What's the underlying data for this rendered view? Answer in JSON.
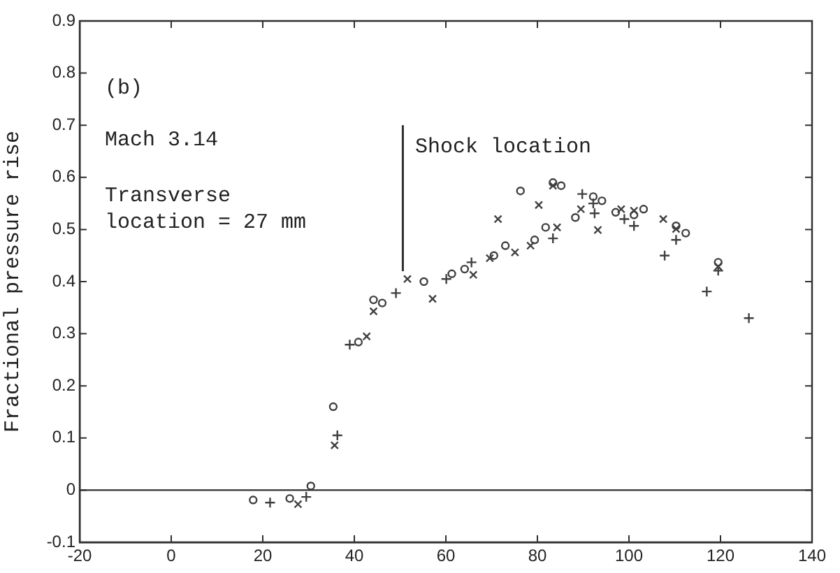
{
  "chart_data": {
    "type": "scatter",
    "ylabel": "Fractional pressure rise",
    "xlim": [
      -20,
      140
    ],
    "xticks": [
      -20,
      0,
      20,
      40,
      60,
      80,
      100,
      120,
      140
    ],
    "ylim": [
      -0.1,
      0.9
    ],
    "yticks": [
      -0.1,
      0,
      0.1,
      0.2,
      0.3,
      0.4,
      0.5,
      0.6,
      0.7,
      0.8,
      0.9
    ],
    "grid": false,
    "legend": false,
    "series": [
      {
        "color": "#404040",
        "marker": "circle",
        "x": [
          17.9,
          25.9,
          30.5,
          35.4,
          40.9,
          44.2,
          46.1,
          55.2,
          61.3,
          64.1,
          70.5,
          73,
          76.3,
          79.4,
          81.8,
          83.4,
          85.2,
          88.3,
          92.2,
          94.1,
          97.1,
          101.1,
          103.2,
          110.3,
          112.4,
          119.5
        ],
        "values": [
          -0.019,
          -0.016,
          0.008,
          0.16,
          0.284,
          0.365,
          0.359,
          0.4,
          0.415,
          0.424,
          0.45,
          0.469,
          0.574,
          0.48,
          0.504,
          0.59,
          0.584,
          0.523,
          0.563,
          0.555,
          0.533,
          0.528,
          0.539,
          0.507,
          0.493,
          0.437
        ]
      },
      {
        "color": "#404040",
        "marker": "cross",
        "x": [
          27.7,
          35.7,
          42.7,
          44.2,
          51.6,
          57.1,
          66,
          69.6,
          71.4,
          75.1,
          78.5,
          80.3,
          83.4,
          84.3,
          89.5,
          93.2,
          98.3,
          101.1,
          107.5,
          110.3,
          119.5
        ],
        "values": [
          -0.027,
          0.086,
          0.295,
          0.343,
          0.405,
          0.367,
          0.413,
          0.445,
          0.52,
          0.456,
          0.469,
          0.547,
          0.584,
          0.504,
          0.539,
          0.499,
          0.539,
          0.536,
          0.52,
          0.501,
          0.429
        ]
      },
      {
        "color": "#404040",
        "marker": "plus",
        "x": [
          21.6,
          29.5,
          36.3,
          39,
          49.1,
          60.1,
          65.6,
          83.4,
          89.8,
          92.2,
          92.5,
          99,
          101.1,
          107.8,
          110.3,
          117,
          119.5,
          126.2
        ],
        "values": [
          -0.024,
          -0.013,
          0.105,
          0.279,
          0.378,
          0.405,
          0.437,
          0.483,
          0.568,
          0.55,
          0.531,
          0.52,
          0.507,
          0.45,
          0.48,
          0.381,
          0.421,
          0.33
        ]
      },
      {
        "type": "line",
        "color": "#303030",
        "marker": "none",
        "x": [
          50.6,
          50.6
        ],
        "values": [
          0.42,
          0.7
        ]
      }
    ],
    "ref_lines": [
      {
        "axis": "y",
        "value": 0,
        "color": "#303030"
      }
    ],
    "annotations": [
      "(b)",
      "Mach 3.14",
      "Transverse\nlocation = 27 mm",
      "Shock location"
    ]
  }
}
